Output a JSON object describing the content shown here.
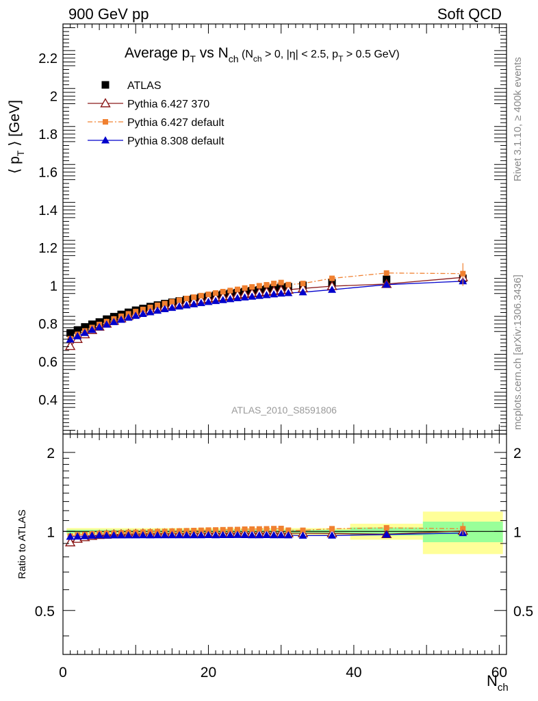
{
  "header": {
    "left": "900 GeV pp",
    "right": "Soft QCD"
  },
  "side_text": {
    "rivet": "Rivet 3.1.10, ≥ 400k events",
    "mcplots": "mcplots.cern.ch [arXiv:1306.3436]"
  },
  "watermark": "ATLAS_2010_S8591806",
  "title": {
    "main": "Average p",
    "sub_T": "T",
    "vs": " vs N",
    "sub_ch": "ch",
    "cut_open": " (N",
    "cut_ch": "ch",
    "cut_mid": " > 0, |η| < 2.5, p",
    "cut_T": "T",
    "cut_close": " > 0.5 GeV)"
  },
  "colors": {
    "atlas": "#000000",
    "p6_370": "#8b1a1a",
    "p6_default": "#f08030",
    "p8_default": "#0000cc",
    "band_yellow": "#ffff99",
    "band_green": "#99ff99"
  },
  "chart_data": [
    {
      "type": "scatter",
      "panel": "main",
      "ylabel_open": "⟨ p",
      "ylabel_sub": "T",
      "ylabel_close": " ⟩ [GeV]",
      "xlim": [
        0,
        61
      ],
      "ylim": [
        0.22,
        2.38
      ],
      "y_ticks": [
        0.4,
        0.6,
        0.8,
        1,
        1.2,
        1.4,
        1.6,
        1.8,
        2,
        2.2
      ],
      "y_tick_labels": [
        "0.4",
        "0.6",
        "0.8",
        "1",
        "1.2",
        "1.4",
        "1.6",
        "1.8",
        "2",
        "2.2"
      ],
      "legend_position": "top-left",
      "series": [
        {
          "name": "ATLAS",
          "marker": "filled-square",
          "x": [
            1,
            2,
            3,
            4,
            5,
            6,
            7,
            8,
            9,
            10,
            11,
            12,
            13,
            14,
            15,
            16,
            17,
            18,
            19,
            20,
            21,
            22,
            23,
            24,
            25,
            26,
            27,
            28,
            29,
            30,
            31,
            33,
            37,
            44.5,
            55
          ],
          "y": [
            0.752,
            0.768,
            0.784,
            0.798,
            0.81,
            0.825,
            0.838,
            0.85,
            0.861,
            0.872,
            0.881,
            0.891,
            0.899,
            0.907,
            0.914,
            0.921,
            0.928,
            0.934,
            0.94,
            0.945,
            0.951,
            0.956,
            0.961,
            0.965,
            0.97,
            0.975,
            0.979,
            0.983,
            0.988,
            0.992,
            0.996,
            1.003,
            1.016,
            1.035,
            1.04
          ]
        },
        {
          "name": "Pythia 6.427 370",
          "marker": "open-triangle",
          "x": [
            1,
            2,
            3,
            4,
            5,
            6,
            7,
            8,
            9,
            10,
            11,
            12,
            13,
            14,
            15,
            16,
            17,
            18,
            19,
            20,
            21,
            22,
            23,
            24,
            25,
            26,
            27,
            28,
            29,
            30,
            31,
            33,
            37,
            44.5,
            55
          ],
          "y": [
            0.683,
            0.72,
            0.745,
            0.767,
            0.785,
            0.801,
            0.816,
            0.829,
            0.842,
            0.853,
            0.864,
            0.874,
            0.883,
            0.891,
            0.899,
            0.906,
            0.913,
            0.92,
            0.926,
            0.932,
            0.937,
            0.942,
            0.947,
            0.952,
            0.957,
            0.961,
            0.965,
            0.969,
            0.973,
            0.977,
            0.98,
            0.987,
            0.999,
            1.01,
            1.045
          ]
        },
        {
          "name": "Pythia 6.427 default",
          "marker": "filled-square-small",
          "x": [
            1,
            2,
            3,
            4,
            5,
            6,
            7,
            8,
            9,
            10,
            11,
            12,
            13,
            14,
            15,
            16,
            17,
            18,
            19,
            20,
            21,
            22,
            23,
            24,
            25,
            26,
            27,
            28,
            29,
            30,
            31,
            33,
            37,
            44.5,
            55
          ],
          "y": [
            0.722,
            0.745,
            0.763,
            0.781,
            0.797,
            0.812,
            0.826,
            0.84,
            0.853,
            0.865,
            0.876,
            0.887,
            0.898,
            0.907,
            0.917,
            0.925,
            0.934,
            0.941,
            0.949,
            0.956,
            0.963,
            0.97,
            0.976,
            0.982,
            0.989,
            0.995,
            1.001,
            1.006,
            1.013,
            1.018,
            1.007,
            1.013,
            1.04,
            1.068,
            1.065
          ]
        },
        {
          "name": "Pythia 8.308 default",
          "marker": "filled-triangle",
          "x": [
            1,
            2,
            3,
            4,
            5,
            6,
            7,
            8,
            9,
            10,
            11,
            12,
            13,
            14,
            15,
            16,
            17,
            18,
            19,
            20,
            21,
            22,
            23,
            24,
            25,
            26,
            27,
            28,
            29,
            30,
            31,
            33,
            37,
            44.5,
            55
          ],
          "y": [
            0.718,
            0.735,
            0.753,
            0.769,
            0.783,
            0.797,
            0.81,
            0.822,
            0.833,
            0.843,
            0.853,
            0.862,
            0.87,
            0.878,
            0.885,
            0.892,
            0.898,
            0.904,
            0.91,
            0.916,
            0.921,
            0.926,
            0.931,
            0.936,
            0.94,
            0.944,
            0.948,
            0.952,
            0.956,
            0.96,
            0.963,
            0.967,
            0.98,
            1.007,
            1.025
          ]
        }
      ]
    },
    {
      "type": "scatter",
      "panel": "ratio",
      "ylabel": "Ratio to ATLAS",
      "xlabel_main": "N",
      "xlabel_sub": "ch",
      "xlim": [
        0,
        61
      ],
      "ylim": [
        0.34,
        2.35
      ],
      "y_scale": "log",
      "y_ticks": [
        0.5,
        1,
        2
      ],
      "y_tick_labels": [
        "0.5",
        "1",
        "2"
      ],
      "x_ticks": [
        0,
        20,
        40,
        60
      ],
      "x_tick_labels": [
        "0",
        "20",
        "40",
        "60"
      ],
      "bands": [
        {
          "x0": 0.5,
          "x1": 39.5,
          "y_yellow": [
            0.97,
            1.03
          ],
          "y_green": [
            0.985,
            1.015
          ]
        },
        {
          "x0": 39.5,
          "x1": 49.5,
          "y_yellow": [
            0.93,
            1.07
          ],
          "y_green": [
            0.965,
            1.035
          ]
        },
        {
          "x0": 49.5,
          "x1": 60.5,
          "y_yellow": [
            0.82,
            1.19
          ],
          "y_green": [
            0.91,
            1.09
          ]
        }
      ],
      "series": [
        {
          "name": "Pythia 6.427 370",
          "x": [
            1,
            2,
            3,
            4,
            5,
            6,
            7,
            8,
            9,
            10,
            11,
            12,
            13,
            14,
            15,
            16,
            17,
            18,
            19,
            20,
            21,
            22,
            23,
            24,
            25,
            26,
            27,
            28,
            29,
            30,
            31,
            33,
            37,
            44.5,
            55
          ],
          "y": [
            0.908,
            0.937,
            0.95,
            0.961,
            0.969,
            0.971,
            0.974,
            0.975,
            0.978,
            0.978,
            0.981,
            0.981,
            0.982,
            0.982,
            0.984,
            0.984,
            0.984,
            0.985,
            0.985,
            0.986,
            0.985,
            0.985,
            0.985,
            0.986,
            0.987,
            0.986,
            0.986,
            0.986,
            0.985,
            0.985,
            0.984,
            0.984,
            0.983,
            0.976,
            1.005
          ]
        },
        {
          "name": "Pythia 6.427 default",
          "x": [
            1,
            2,
            3,
            4,
            5,
            6,
            7,
            8,
            9,
            10,
            11,
            12,
            13,
            14,
            15,
            16,
            17,
            18,
            19,
            20,
            21,
            22,
            23,
            24,
            25,
            26,
            27,
            28,
            29,
            30,
            31,
            33,
            37,
            44.5,
            55
          ],
          "y": [
            0.96,
            0.97,
            0.973,
            0.979,
            0.983,
            0.984,
            0.986,
            0.988,
            0.991,
            0.992,
            0.994,
            0.996,
            0.999,
            1.0,
            1.003,
            1.004,
            1.006,
            1.008,
            1.01,
            1.012,
            1.013,
            1.015,
            1.016,
            1.017,
            1.02,
            1.021,
            1.022,
            1.023,
            1.025,
            1.026,
            1.011,
            1.01,
            1.024,
            1.032,
            1.024
          ]
        },
        {
          "name": "Pythia 8.308 default",
          "x": [
            1,
            2,
            3,
            4,
            5,
            6,
            7,
            8,
            9,
            10,
            11,
            12,
            13,
            14,
            15,
            16,
            17,
            18,
            19,
            20,
            21,
            22,
            23,
            24,
            25,
            26,
            27,
            28,
            29,
            30,
            31,
            33,
            37,
            44.5,
            55
          ],
          "y": [
            0.955,
            0.957,
            0.96,
            0.964,
            0.967,
            0.966,
            0.967,
            0.967,
            0.967,
            0.967,
            0.968,
            0.967,
            0.968,
            0.968,
            0.968,
            0.968,
            0.968,
            0.968,
            0.968,
            0.969,
            0.968,
            0.969,
            0.969,
            0.97,
            0.969,
            0.968,
            0.968,
            0.969,
            0.968,
            0.968,
            0.967,
            0.964,
            0.965,
            0.973,
            0.986
          ]
        }
      ]
    }
  ]
}
